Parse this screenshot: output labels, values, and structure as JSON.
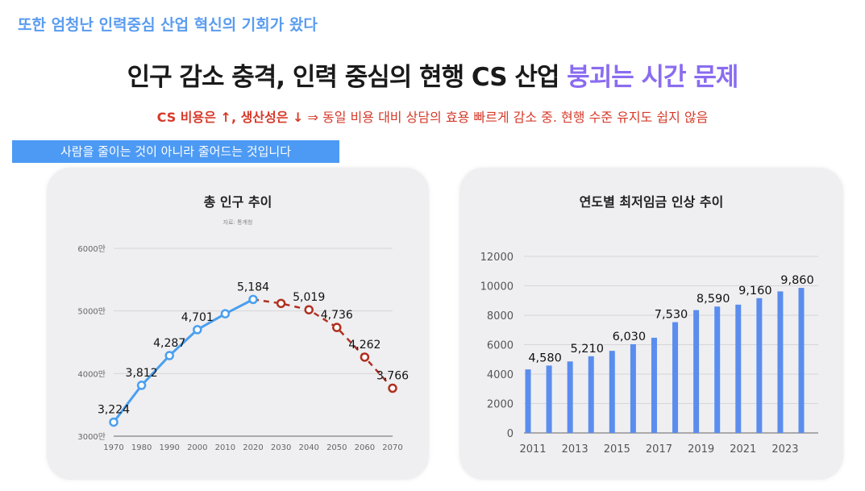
{
  "header": {
    "kicker": "또한 엄청난 인력중심 산업 혁신의 기회가 왔다",
    "title_main": "인구 감소 충격, 인력 중심의 현행 CS 산업 ",
    "title_accent": "붕괴는 시간 문제",
    "subtitle_bold": "CS 비용은 ↑, 생산성은 ↓",
    "subtitle_rest": " ⇒ 동일 비용 대비 상담의 효용 빠르게 감소 중. 현행 수준 유지도 쉽지 않음",
    "banner": "사람을 줄이는 것이 아니라 줄어드는 것입니다"
  },
  "colors": {
    "accent_blue": "#4c9af4",
    "accent_purple": "#8a6cf0",
    "alert_red": "#d63a2a",
    "line_actual": "#4a9ff0",
    "line_projected": "#b03020",
    "bar": "#5b8def"
  },
  "chart_data": [
    {
      "type": "line",
      "title": "총 인구 추이",
      "subtitle": "자료: 통계청",
      "x": [
        1970,
        1980,
        1990,
        2000,
        2010,
        2020,
        2030,
        2040,
        2050,
        2060,
        2070
      ],
      "xticks": [
        "1970",
        "1980",
        "1990",
        "2000",
        "2010",
        "2020",
        "2030",
        "2040",
        "2050",
        "2060",
        "2070"
      ],
      "yticks": [
        "3000만",
        "4000만",
        "5000만",
        "6000만"
      ],
      "ylim": [
        3000,
        6000
      ],
      "grid": true,
      "series": [
        {
          "style": "solid",
          "x": [
            1970,
            1980,
            1990,
            2000,
            2010,
            2020
          ],
          "values": [
            3224,
            3812,
            4287,
            4701,
            4955,
            5184
          ],
          "labels": [
            "3,224",
            "3,812",
            "4,287",
            "4,701",
            null,
            "5,184"
          ]
        },
        {
          "style": "dashed",
          "x": [
            2020,
            2030,
            2040,
            2050,
            2060,
            2070
          ],
          "values": [
            5184,
            5120,
            5019,
            4736,
            4262,
            3766
          ],
          "labels": [
            null,
            null,
            "5,019",
            "4,736",
            "4,262",
            "3,766"
          ]
        }
      ]
    },
    {
      "type": "bar",
      "title": "연도별 최저임금 인상 추이",
      "categories": [
        "2011",
        "2012",
        "2013",
        "2014",
        "2015",
        "2016",
        "2017",
        "2018",
        "2019",
        "2020",
        "2021",
        "2022",
        "2023",
        "2024"
      ],
      "xticks": [
        "2011",
        "2013",
        "2015",
        "2017",
        "2019",
        "2021",
        "2023"
      ],
      "values": [
        4320,
        4580,
        4860,
        5210,
        5580,
        6030,
        6470,
        7530,
        8350,
        8590,
        8720,
        9160,
        9620,
        9860
      ],
      "labels": [
        null,
        "4,580",
        null,
        "5,210",
        null,
        "6,030",
        null,
        "7,530",
        null,
        "8,590",
        null,
        "9,160",
        null,
        "9,860"
      ],
      "yticks": [
        "0",
        "2000",
        "4000",
        "6000",
        "8000",
        "10000",
        "12000"
      ],
      "ylim": [
        0,
        12000
      ],
      "grid": true
    }
  ]
}
